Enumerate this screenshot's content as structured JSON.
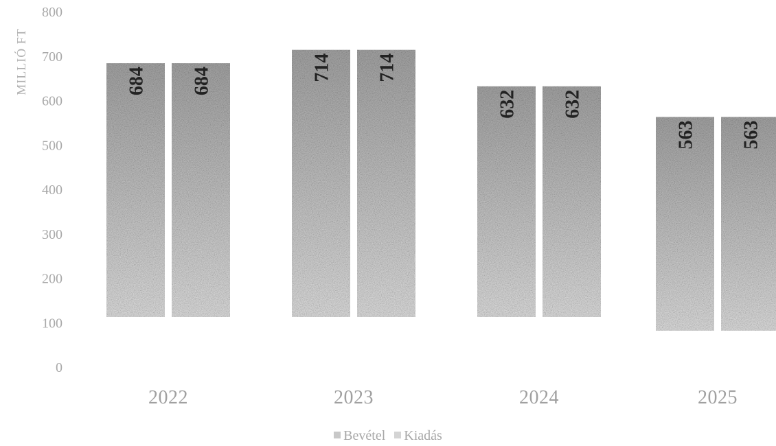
{
  "chart_data": {
    "type": "bar",
    "categories": [
      "2022",
      "2023",
      "2024",
      "2025"
    ],
    "series": [
      {
        "name": "Bevétel",
        "values": [
          684,
          714,
          632,
          563
        ]
      },
      {
        "name": "Kiadás",
        "values": [
          684,
          714,
          632,
          563
        ]
      }
    ],
    "ylabel": "MILLIÓ FT",
    "xlabel": "",
    "ylim": [
      0,
      800
    ],
    "yticks": [
      "0",
      "100",
      "200",
      "300",
      "400",
      "500",
      "600",
      "700",
      "800"
    ],
    "grid": false,
    "legend": "bottom-center",
    "colors": {
      "bar_top": "#a9a9a9",
      "bar_bottom": "#e4e4e4",
      "label": "#222222",
      "axis_text": "#a8a8a8"
    }
  }
}
